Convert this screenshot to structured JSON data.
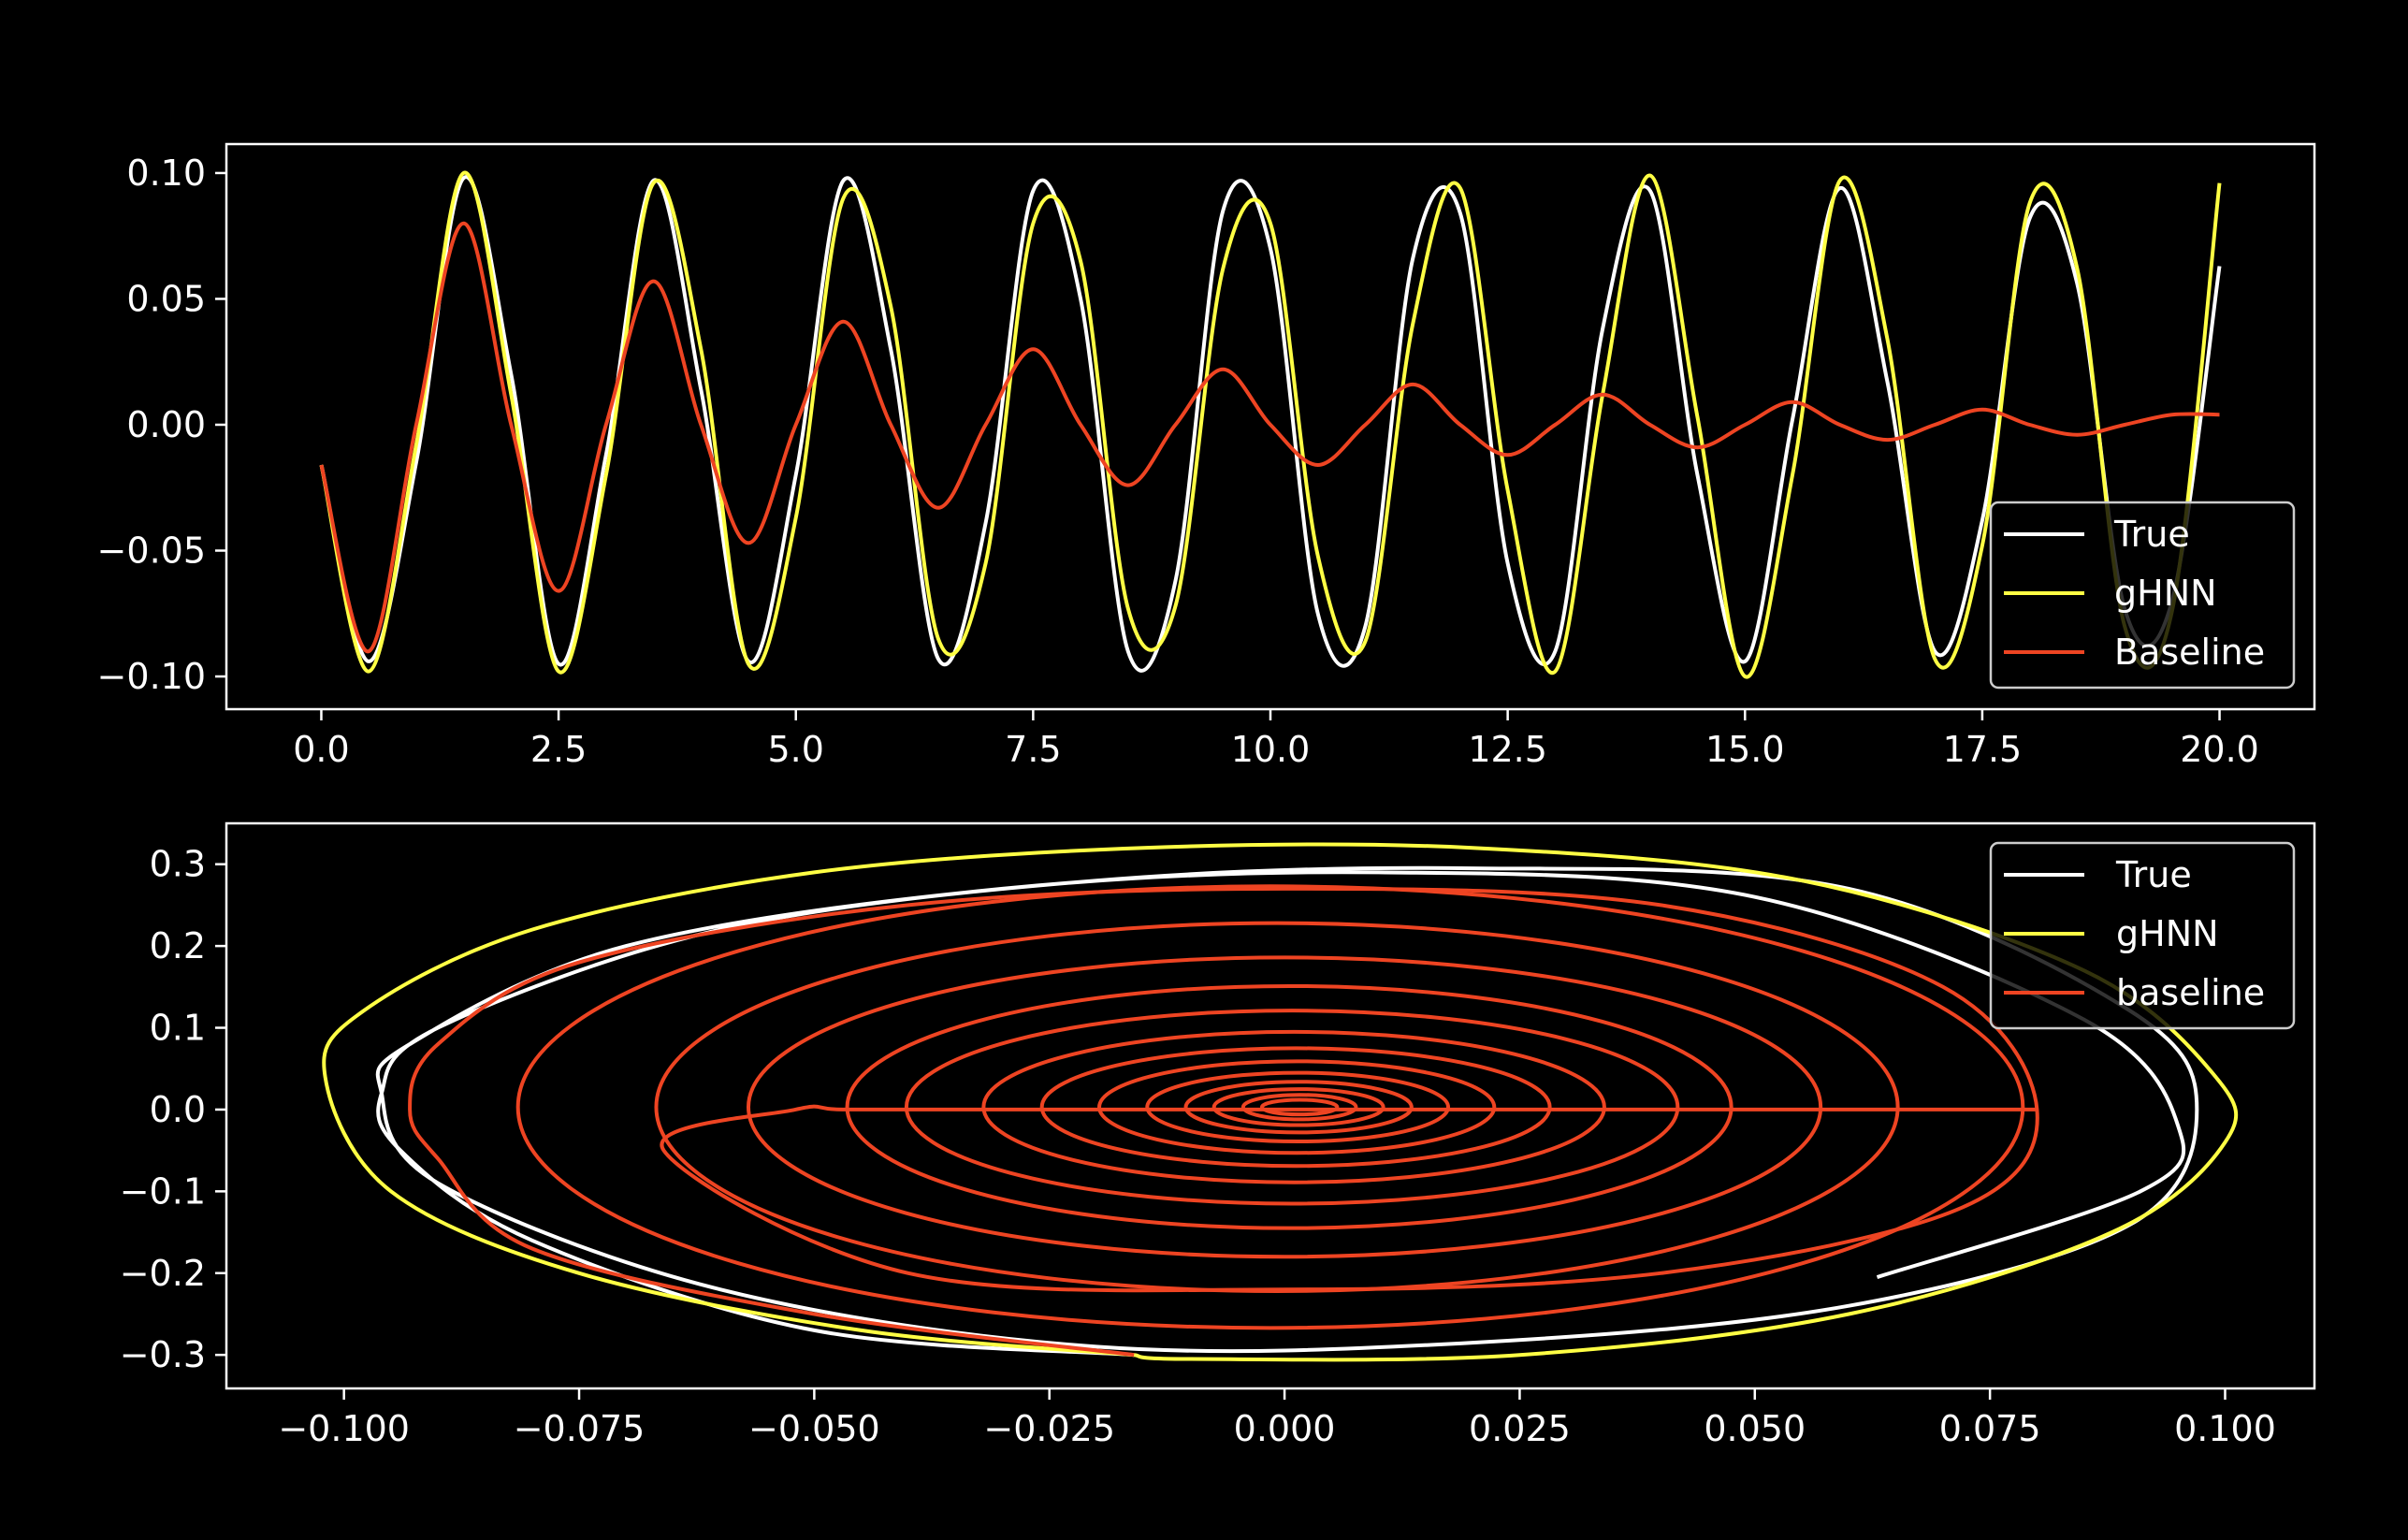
{
  "chart_data": [
    {
      "type": "line",
      "title": "",
      "xlabel": "",
      "ylabel": "",
      "xlim": [
        -1.0,
        21.0
      ],
      "ylim": [
        -0.113,
        0.1115
      ],
      "xticks": [
        "0.0",
        "2.5",
        "5.0",
        "7.5",
        "10.0",
        "12.5",
        "15.0",
        "17.5",
        "20.0"
      ],
      "yticks": [
        "0.10",
        "0.05",
        "0.00",
        "−0.05",
        "−0.10"
      ],
      "xtick_values": [
        0,
        2.5,
        5,
        7.5,
        10,
        12.5,
        15,
        17.5,
        20
      ],
      "ytick_values": [
        0.1,
        0.05,
        0,
        -0.05,
        -0.1
      ],
      "grid": false,
      "legend_position": "lower-right",
      "legend": [
        "True",
        "gHNN",
        "Baseline"
      ],
      "series": [
        {
          "name": "True",
          "color": "#ffffff",
          "x": [
            0,
            0.5,
            1,
            1.5,
            2,
            2.5,
            3,
            3.5,
            4,
            4.5,
            5,
            5.5,
            6,
            6.5,
            7,
            7.5,
            8,
            8.5,
            9,
            9.5,
            10,
            10.5,
            11,
            11.5,
            12,
            12.5,
            13,
            13.5,
            14,
            14.5,
            15,
            15.5,
            16,
            16.5,
            17,
            17.5,
            18,
            18.5,
            19,
            19.5,
            20
          ],
          "y": [
            -0.016,
            -0.094,
            -0.015,
            0.098,
            0.02,
            -0.095,
            -0.012,
            0.097,
            0.014,
            -0.094,
            -0.02,
            0.097,
            0.03,
            -0.093,
            -0.039,
            0.093,
            0.05,
            -0.09,
            -0.062,
            0.085,
            0.07,
            -0.075,
            -0.08,
            0.066,
            0.084,
            -0.055,
            -0.09,
            0.038,
            0.093,
            -0.02,
            -0.094,
            0.002,
            0.094,
            0.017,
            -0.09,
            -0.038,
            0.082,
            0.056,
            -0.073,
            -0.07,
            0.063
          ]
        },
        {
          "name": "gHNN",
          "color": "#ffff44",
          "x": [
            0,
            0.5,
            1,
            1.5,
            2,
            2.5,
            3,
            3.5,
            4,
            4.5,
            5,
            5.5,
            6,
            6.5,
            7,
            7.5,
            8,
            8.5,
            9,
            9.5,
            10,
            10.5,
            11,
            11.5,
            12,
            12.5,
            13,
            13.5,
            14,
            14.5,
            15,
            15.5,
            16,
            16.5,
            17,
            17.5,
            18,
            18.5,
            19,
            19.5,
            20
          ],
          "y": [
            -0.016,
            -0.098,
            -0.008,
            0.1,
            0.012,
            -0.098,
            -0.02,
            0.096,
            0.03,
            -0.095,
            -0.037,
            0.09,
            0.047,
            -0.085,
            -0.055,
            0.08,
            0.065,
            -0.073,
            -0.072,
            0.062,
            0.08,
            -0.052,
            -0.086,
            0.04,
            0.094,
            -0.026,
            -0.098,
            0.012,
            0.099,
            0.003,
            -0.1,
            -0.02,
            0.097,
            0.034,
            -0.093,
            -0.048,
            0.088,
            0.062,
            -0.08,
            -0.074,
            0.096
          ]
        },
        {
          "name": "Baseline",
          "color": "#ee4422",
          "x": [
            0,
            0.5,
            1,
            1.5,
            2,
            2.5,
            3,
            3.5,
            4,
            4.5,
            5,
            5.5,
            6,
            6.5,
            7,
            7.5,
            8,
            8.5,
            9,
            9.5,
            10,
            10.5,
            11,
            11.5,
            12,
            12.5,
            13,
            13.5,
            14,
            14.5,
            15,
            15.5,
            16,
            16.5,
            17,
            17.5,
            18,
            18.5,
            19,
            19.5,
            20
          ],
          "y": [
            -0.016,
            -0.09,
            0.0,
            0.08,
            0.0,
            -0.066,
            0.0,
            0.057,
            0.0,
            -0.047,
            0.0,
            0.041,
            0.0,
            -0.033,
            0.0,
            0.03,
            0.0,
            -0.024,
            0.0,
            0.022,
            0.0,
            -0.016,
            0.0,
            0.016,
            0.0,
            -0.012,
            0.0,
            0.012,
            0.0,
            -0.009,
            0.0,
            0.009,
            0.0,
            -0.006,
            0.0,
            0.006,
            0.0,
            -0.004,
            0.0,
            0.004,
            0.004
          ]
        }
      ]
    },
    {
      "type": "line",
      "title": "",
      "xlabel": "",
      "ylabel": "",
      "xlim": [
        -0.1125,
        0.1095
      ],
      "ylim": [
        -0.341,
        0.35
      ],
      "xticks": [
        "−0.100",
        "−0.075",
        "−0.050",
        "−0.025",
        "0.000",
        "0.025",
        "0.050",
        "0.075",
        "0.100"
      ],
      "yticks": [
        "0.3",
        "0.2",
        "0.1",
        "0.0",
        "−0.1",
        "−0.2",
        "−0.3"
      ],
      "xtick_values": [
        -0.1,
        -0.075,
        -0.05,
        -0.025,
        0,
        0.025,
        0.05,
        0.075,
        0.1
      ],
      "ytick_values": [
        0.3,
        0.2,
        0.1,
        0,
        -0.1,
        -0.2,
        -0.3
      ],
      "grid": false,
      "legend_position": "upper-right",
      "legend": [
        "True",
        "gHNN",
        "baseline"
      ],
      "series": [
        {
          "name": "True",
          "color": "#ffffff",
          "x": [
            -0.016,
            -0.05,
            -0.08,
            -0.094,
            -0.096,
            -0.09,
            -0.06,
            -0.02,
            0.02,
            0.06,
            0.09,
            0.097,
            0.09,
            0.06,
            0.02,
            -0.02,
            -0.06,
            -0.09,
            -0.096,
            -0.093,
            -0.07,
            -0.03,
            0.01,
            0.05,
            0.085,
            0.095,
            0.091,
            0.063
          ],
          "y": [
            -0.3,
            -0.27,
            -0.16,
            -0.05,
            0.02,
            0.1,
            0.22,
            0.28,
            0.295,
            0.27,
            0.12,
            0.0,
            -0.14,
            -0.24,
            -0.285,
            -0.29,
            -0.22,
            -0.09,
            0.02,
            0.08,
            0.2,
            0.27,
            0.29,
            0.26,
            0.11,
            -0.02,
            -0.1,
            -0.205
          ]
        },
        {
          "name": "gHNN",
          "color": "#ffff44",
          "x": [
            -0.016,
            -0.045,
            -0.075,
            -0.095,
            -0.102,
            -0.098,
            -0.08,
            -0.05,
            -0.015,
            0.02,
            0.055,
            0.085,
            0.099,
            0.1,
            0.088,
            0.06,
            0.025,
            -0.01,
            -0.016
          ],
          "y": [
            -0.3,
            -0.27,
            -0.2,
            -0.1,
            0.04,
            0.12,
            0.22,
            0.29,
            0.32,
            0.32,
            0.28,
            0.17,
            0.04,
            -0.04,
            -0.15,
            -0.25,
            -0.3,
            -0.305,
            -0.3
          ]
        },
        {
          "name": "baseline",
          "color": "#ee4422",
          "x": [
            -0.016,
            -0.05,
            -0.08,
            -0.09,
            -0.093,
            -0.09,
            -0.075,
            -0.04,
            0.0,
            0.04,
            0.07,
            0.08,
            0.072,
            0.04,
            0.0,
            -0.04,
            -0.066,
            -0.052,
            -0.047,
            -0.033,
            -0.024,
            -0.016,
            -0.012,
            -0.009,
            -0.006,
            -0.004,
            0.0,
            0.004,
            0.006,
            0.009,
            0.012,
            0.016,
            0.022,
            0.03,
            0.041,
            0.057,
            0.08
          ],
          "y": [
            -0.3,
            -0.25,
            -0.17,
            -0.06,
            0.0,
            0.08,
            0.18,
            0.25,
            0.27,
            0.25,
            0.15,
            0.0,
            -0.12,
            -0.2,
            -0.22,
            -0.2,
            -0.05,
            0.0,
            0.0,
            0.0,
            0.0,
            0.0,
            0.0,
            0.0,
            0.0,
            0.0,
            0.0,
            0.0,
            0.0,
            0.0,
            0.0,
            0.0,
            0.0,
            0.0,
            0.0,
            0.0,
            0.0
          ]
        }
      ],
      "spirals": [
        {
          "rx": 0.08,
          "ry": 0.27,
          "cx": -0.0015,
          "cy": 0.003
        },
        {
          "rx": 0.066,
          "ry": 0.225,
          "cx": -0.0008,
          "cy": 0.003
        },
        {
          "rx": 0.057,
          "ry": 0.183,
          "cx": 0.0,
          "cy": 0.003
        },
        {
          "rx": 0.047,
          "ry": 0.148,
          "cx": 0.0005,
          "cy": 0.003
        },
        {
          "rx": 0.041,
          "ry": 0.118,
          "cx": 0.0008,
          "cy": 0.003
        },
        {
          "rx": 0.033,
          "ry": 0.092,
          "cx": 0.001,
          "cy": 0.003
        },
        {
          "rx": 0.027,
          "ry": 0.072,
          "cx": 0.0012,
          "cy": 0.003
        },
        {
          "rx": 0.021,
          "ry": 0.056,
          "cx": 0.0013,
          "cy": 0.003
        },
        {
          "rx": 0.016,
          "ry": 0.042,
          "cx": 0.0014,
          "cy": 0.003
        },
        {
          "rx": 0.012,
          "ry": 0.031,
          "cx": 0.0015,
          "cy": 0.003
        },
        {
          "rx": 0.009,
          "ry": 0.022,
          "cx": 0.0015,
          "cy": 0.003
        },
        {
          "rx": 0.006,
          "ry": 0.015,
          "cx": 0.0016,
          "cy": 0.003
        },
        {
          "rx": 0.004,
          "ry": 0.009,
          "cx": 0.0016,
          "cy": 0.003
        }
      ]
    }
  ]
}
